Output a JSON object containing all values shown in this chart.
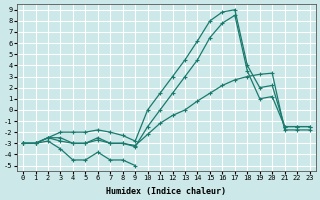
{
  "xlabel": "Humidex (Indice chaleur)",
  "background_color": "#cce8e8",
  "grid_color": "#ffffff",
  "line_color": "#1a7a6e",
  "xlim": [
    -0.5,
    23.5
  ],
  "ylim": [
    -5.5,
    9.5
  ],
  "xticks": [
    0,
    1,
    2,
    3,
    4,
    5,
    6,
    7,
    8,
    9,
    10,
    11,
    12,
    13,
    14,
    15,
    16,
    17,
    18,
    19,
    20,
    21,
    22,
    23
  ],
  "yticks": [
    -5,
    -4,
    -3,
    -2,
    -1,
    0,
    1,
    2,
    3,
    4,
    5,
    6,
    7,
    8,
    9
  ],
  "s0_x": [
    0,
    1,
    2,
    3,
    4,
    5,
    6,
    7,
    8,
    9
  ],
  "s0_y": [
    -3,
    -3,
    -2.8,
    -3.5,
    -4.5,
    -4.5,
    -3.8,
    -4.5,
    -4.5,
    -5
  ],
  "s1_x": [
    0,
    1,
    2,
    3,
    4,
    5,
    6,
    7,
    8,
    9,
    10,
    11,
    12,
    13,
    14,
    15,
    16,
    17,
    18,
    19,
    20,
    21,
    22,
    23
  ],
  "s1_y": [
    -3,
    -3,
    -2.5,
    -2.8,
    -3,
    -3,
    -2.7,
    -3,
    -3,
    -3.2,
    -2.2,
    -1.2,
    -0.5,
    0.0,
    0.8,
    1.5,
    2.2,
    2.7,
    3.0,
    3.2,
    3.3,
    -1.8,
    -1.8,
    -1.8
  ],
  "s2_x": [
    0,
    1,
    2,
    3,
    4,
    5,
    6,
    7,
    8,
    9,
    10,
    11,
    12,
    13,
    14,
    15,
    16,
    17,
    18,
    19,
    20,
    21,
    22,
    23
  ],
  "s2_y": [
    -3,
    -3,
    -2.5,
    -2.5,
    -3,
    -3,
    -2.5,
    -3,
    -3,
    -3.3,
    -1.5,
    0.0,
    1.5,
    3.0,
    4.5,
    6.5,
    7.8,
    8.5,
    3.5,
    1.0,
    1.2,
    -1.5,
    -1.5,
    -1.5
  ],
  "s3_x": [
    0,
    1,
    2,
    3,
    4,
    5,
    6,
    7,
    8,
    9,
    10,
    11,
    12,
    13,
    14,
    15,
    16,
    17,
    18,
    19,
    20,
    21,
    22,
    23
  ],
  "s3_y": [
    -3,
    -3,
    -2.5,
    -2.0,
    -2,
    -2,
    -1.8,
    -2,
    -2.3,
    -2.8,
    0,
    1.5,
    3.0,
    4.5,
    6.2,
    8.0,
    8.8,
    9.0,
    4.0,
    2.0,
    2.2,
    -1.5,
    -1.5,
    -1.5
  ]
}
